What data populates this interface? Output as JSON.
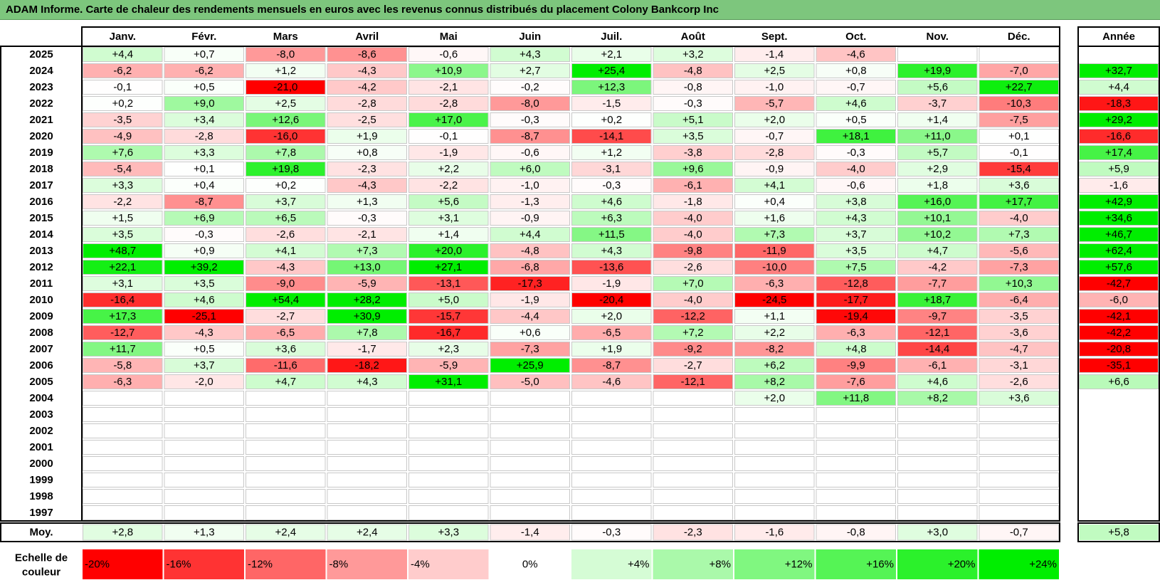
{
  "title": "ADAM Informe. Carte de chaleur des rendements mensuels en euros avec les revenus connus distribués du placement Colony Bankcorp Inc",
  "chart_data": {
    "type": "heatmap",
    "months": [
      "Janv.",
      "Févr.",
      "Mars",
      "Avril",
      "Mai",
      "Juin",
      "Juil.",
      "Août",
      "Sept.",
      "Oct.",
      "Nov.",
      "Déc."
    ],
    "year_header": "Année",
    "rows": [
      {
        "year": "2025",
        "values": [
          4.4,
          0.7,
          -8.0,
          -8.6,
          -0.6,
          4.3,
          2.1,
          3.2,
          -1.4,
          -4.6,
          null,
          null
        ],
        "annual": null
      },
      {
        "year": "2024",
        "values": [
          -6.2,
          -6.2,
          1.2,
          -4.3,
          10.9,
          2.7,
          25.4,
          -4.8,
          2.5,
          0.8,
          19.9,
          -7.0
        ],
        "annual": 32.7
      },
      {
        "year": "2023",
        "values": [
          -0.1,
          0.5,
          -21.0,
          -4.2,
          -2.1,
          -0.2,
          12.3,
          -0.8,
          -1.0,
          -0.7,
          5.6,
          22.7
        ],
        "annual": 4.4
      },
      {
        "year": "2022",
        "values": [
          0.2,
          9.0,
          2.5,
          -2.8,
          -2.8,
          -8.0,
          -1.5,
          -0.3,
          -5.7,
          4.6,
          -3.7,
          -10.3
        ],
        "annual": -18.3
      },
      {
        "year": "2021",
        "values": [
          -3.5,
          3.4,
          12.6,
          -2.5,
          17.0,
          -0.3,
          0.2,
          5.1,
          2.0,
          0.5,
          1.4,
          -7.5
        ],
        "annual": 29.2
      },
      {
        "year": "2020",
        "values": [
          -4.9,
          -2.8,
          -16.0,
          1.9,
          -0.1,
          -8.7,
          -14.1,
          3.5,
          -0.7,
          18.1,
          11.0,
          0.1
        ],
        "annual": -16.6
      },
      {
        "year": "2019",
        "values": [
          7.6,
          3.3,
          7.8,
          0.8,
          -1.9,
          -0.6,
          1.2,
          -3.8,
          -2.8,
          -0.3,
          5.7,
          -0.1
        ],
        "annual": 17.4
      },
      {
        "year": "2018",
        "values": [
          -5.4,
          0.1,
          19.8,
          -2.3,
          2.2,
          6.0,
          -3.1,
          9.6,
          -0.9,
          -4.0,
          2.9,
          -15.4
        ],
        "annual": 5.9
      },
      {
        "year": "2017",
        "values": [
          3.3,
          0.4,
          0.2,
          -4.3,
          -2.2,
          -1.0,
          -0.3,
          -6.1,
          4.1,
          -0.6,
          1.8,
          3.6
        ],
        "annual": -1.6
      },
      {
        "year": "2016",
        "values": [
          -2.2,
          -8.7,
          3.7,
          1.3,
          5.6,
          -1.3,
          4.6,
          -1.8,
          0.4,
          3.8,
          16.0,
          17.7
        ],
        "annual": 42.9
      },
      {
        "year": "2015",
        "values": [
          1.5,
          6.9,
          6.5,
          -0.3,
          3.1,
          -0.9,
          6.3,
          -4.0,
          1.6,
          4.3,
          10.1,
          -4.0
        ],
        "annual": 34.6
      },
      {
        "year": "2014",
        "values": [
          3.5,
          -0.3,
          -2.6,
          -2.1,
          1.4,
          4.4,
          11.5,
          -4.0,
          7.3,
          3.7,
          10.2,
          7.3
        ],
        "annual": 46.7
      },
      {
        "year": "2013",
        "values": [
          48.7,
          0.9,
          4.1,
          7.3,
          20.0,
          -4.8,
          4.3,
          -9.8,
          -11.9,
          3.5,
          4.7,
          -5.6
        ],
        "annual": 62.4
      },
      {
        "year": "2012",
        "values": [
          22.1,
          39.2,
          -4.3,
          13.0,
          27.1,
          -6.8,
          -13.6,
          -2.6,
          -10.0,
          7.5,
          -4.2,
          -7.3
        ],
        "annual": 57.6
      },
      {
        "year": "2011",
        "values": [
          3.1,
          3.5,
          -9.0,
          -5.9,
          -13.1,
          -17.3,
          -1.9,
          7.0,
          -6.3,
          -12.8,
          -7.7,
          10.3
        ],
        "annual": -42.7
      },
      {
        "year": "2010",
        "values": [
          -16.4,
          4.6,
          54.4,
          28.2,
          5.0,
          -1.9,
          -20.4,
          -4.0,
          -24.5,
          -17.7,
          18.7,
          -6.4
        ],
        "annual": -6.0
      },
      {
        "year": "2009",
        "values": [
          17.3,
          -25.1,
          -2.7,
          30.9,
          -15.7,
          -4.4,
          2.0,
          -12.2,
          1.1,
          -19.4,
          -9.7,
          -3.5
        ],
        "annual": -42.1
      },
      {
        "year": "2008",
        "values": [
          -12.7,
          -4.3,
          -6.5,
          7.8,
          -16.7,
          0.6,
          -6.5,
          7.2,
          2.2,
          -6.3,
          -12.1,
          -3.6
        ],
        "annual": -42.2
      },
      {
        "year": "2007",
        "values": [
          11.7,
          0.5,
          3.6,
          -1.7,
          2.3,
          -7.3,
          1.9,
          -9.2,
          -8.2,
          4.8,
          -14.4,
          -4.7
        ],
        "annual": -20.8
      },
      {
        "year": "2006",
        "values": [
          -5.8,
          3.7,
          -11.6,
          -18.2,
          -5.9,
          25.9,
          -8.7,
          -2.7,
          6.2,
          -9.9,
          -6.1,
          -3.1
        ],
        "annual": -35.1
      },
      {
        "year": "2005",
        "values": [
          -6.3,
          -2.0,
          4.7,
          4.3,
          31.1,
          -5.0,
          -4.6,
          -12.1,
          8.2,
          -7.6,
          4.6,
          -2.6
        ],
        "annual": 6.6
      },
      {
        "year": "2004",
        "values": [
          null,
          null,
          null,
          null,
          null,
          null,
          null,
          null,
          2.0,
          11.8,
          8.2,
          3.6
        ],
        "annual": null
      },
      {
        "year": "2003",
        "values": [
          null,
          null,
          null,
          null,
          null,
          null,
          null,
          null,
          null,
          null,
          null,
          null
        ],
        "annual": null
      },
      {
        "year": "2002",
        "values": [
          null,
          null,
          null,
          null,
          null,
          null,
          null,
          null,
          null,
          null,
          null,
          null
        ],
        "annual": null
      },
      {
        "year": "2001",
        "values": [
          null,
          null,
          null,
          null,
          null,
          null,
          null,
          null,
          null,
          null,
          null,
          null
        ],
        "annual": null
      },
      {
        "year": "2000",
        "values": [
          null,
          null,
          null,
          null,
          null,
          null,
          null,
          null,
          null,
          null,
          null,
          null
        ],
        "annual": null
      },
      {
        "year": "1999",
        "values": [
          null,
          null,
          null,
          null,
          null,
          null,
          null,
          null,
          null,
          null,
          null,
          null
        ],
        "annual": null
      },
      {
        "year": "1998",
        "values": [
          null,
          null,
          null,
          null,
          null,
          null,
          null,
          null,
          null,
          null,
          null,
          null
        ],
        "annual": null
      },
      {
        "year": "1997",
        "values": [
          null,
          null,
          null,
          null,
          null,
          null,
          null,
          null,
          null,
          null,
          null,
          null
        ],
        "annual": null
      }
    ],
    "average": {
      "label": "Moy.",
      "values": [
        2.8,
        1.3,
        2.4,
        2.4,
        3.3,
        -1.4,
        -0.3,
        -2.3,
        -1.6,
        -0.8,
        3.0,
        -0.7
      ],
      "annual": 5.8
    },
    "scale": {
      "label_line1": "Echelle de",
      "label_line2": "couleur",
      "steps": [
        {
          "label": "-20%",
          "value": -20
        },
        {
          "label": "-16%",
          "value": -16
        },
        {
          "label": "-12%",
          "value": -12
        },
        {
          "label": "-8%",
          "value": -8
        },
        {
          "label": "-4%",
          "value": -4
        },
        {
          "label": "0%",
          "value": 0
        },
        {
          "label": "+4%",
          "value": 4
        },
        {
          "label": "+8%",
          "value": 8
        },
        {
          "label": "+12%",
          "value": 12
        },
        {
          "label": "+16%",
          "value": 16
        },
        {
          "label": "+20%",
          "value": 20
        },
        {
          "label": "+24%",
          "value": 24
        }
      ]
    },
    "colors": {
      "negative_max": "#ff0000",
      "positive_max": "#00ee00",
      "neutral": "#ffffff",
      "title_background": "#7dc67d"
    }
  }
}
